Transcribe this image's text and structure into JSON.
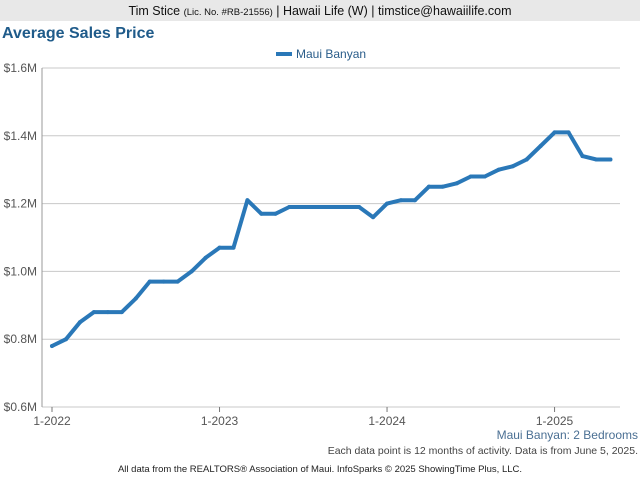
{
  "header": {
    "agent_name": "Tim Stice",
    "license": "(Lic. No. #RB-21556)",
    "rest": "| Hawaii Life (W) | timstice@hawaiilife.com"
  },
  "chart_title": "Average Sales Price",
  "subtitle": "Maui Banyan: 2 Bedrooms",
  "note": "Each data point is 12 months of activity. Data is from June 5, 2025.",
  "footer": "All data from the REALTORS® Association of Maui. InfoSparks © 2025 ShowingTime Plus, LLC.",
  "colors": {
    "series": "#2a78b8",
    "grid": "#c8c8c8",
    "axis": "#555555"
  },
  "chart_data": {
    "type": "line",
    "title": "Average Sales Price",
    "xlabel": "",
    "ylabel": "",
    "x_ticks": [
      "1-2022",
      "1-2023",
      "1-2024",
      "1-2025"
    ],
    "y_ticks": [
      "$0.6M",
      "$0.8M",
      "$1.0M",
      "$1.2M",
      "$1.4M",
      "$1.6M"
    ],
    "ylim": [
      0.6,
      1.6
    ],
    "y_unit": "millions USD",
    "grid": true,
    "legend_position": "top-center",
    "series": [
      {
        "name": "Maui Banyan",
        "x": [
          "2022-01",
          "2022-02",
          "2022-03",
          "2022-04",
          "2022-05",
          "2022-06",
          "2022-07",
          "2022-08",
          "2022-09",
          "2022-10",
          "2022-11",
          "2022-12",
          "2023-01",
          "2023-02",
          "2023-03",
          "2023-04",
          "2023-05",
          "2023-06",
          "2023-07",
          "2023-08",
          "2023-09",
          "2023-10",
          "2023-11",
          "2023-12",
          "2024-01",
          "2024-02",
          "2024-03",
          "2024-04",
          "2024-05",
          "2024-06",
          "2024-07",
          "2024-08",
          "2024-09",
          "2024-10",
          "2024-11",
          "2024-12",
          "2025-01",
          "2025-02",
          "2025-03",
          "2025-04",
          "2025-05"
        ],
        "values": [
          0.78,
          0.8,
          0.85,
          0.88,
          0.88,
          0.88,
          0.92,
          0.97,
          0.97,
          0.97,
          1.0,
          1.04,
          1.07,
          1.07,
          1.21,
          1.17,
          1.17,
          1.19,
          1.19,
          1.19,
          1.19,
          1.19,
          1.19,
          1.16,
          1.2,
          1.21,
          1.21,
          1.25,
          1.25,
          1.26,
          1.28,
          1.28,
          1.3,
          1.31,
          1.33,
          1.37,
          1.41,
          1.41,
          1.34,
          1.33,
          1.33
        ]
      }
    ]
  }
}
